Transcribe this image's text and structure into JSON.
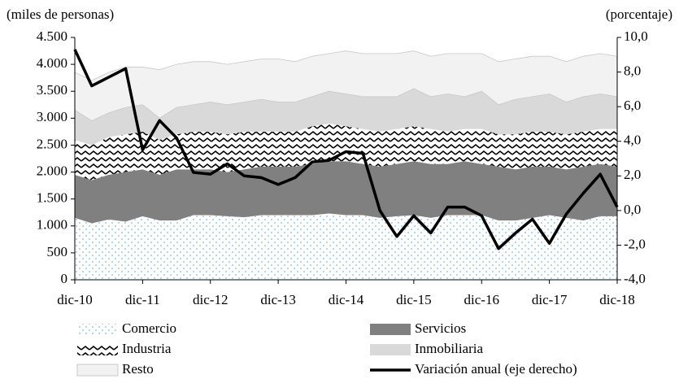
{
  "chart_data": {
    "type": "stacked-area-line",
    "y_label": "(miles de personas)",
    "y2_label": "(porcentaje)",
    "categories": [
      "dic-10",
      null,
      null,
      null,
      "dic-11",
      null,
      null,
      null,
      "dic-12",
      null,
      null,
      null,
      "dic-13",
      null,
      null,
      null,
      "dic-14",
      null,
      null,
      null,
      "dic-15",
      null,
      null,
      null,
      "dic-16",
      null,
      null,
      null,
      "dic-17",
      null,
      null,
      null,
      "dic-18"
    ],
    "ylim": [
      0,
      4500
    ],
    "yticks": [
      0,
      500,
      {
        "value": 1000,
        "label": "1.000"
      },
      {
        "value": 1500,
        "label": "1.500"
      },
      {
        "value": 2000,
        "label": "2.000"
      },
      {
        "value": 2500,
        "label": "2.500"
      },
      {
        "value": 3000,
        "label": "3.000"
      },
      {
        "value": 3500,
        "label": "3.500"
      },
      {
        "value": 4000,
        "label": "4.000"
      },
      {
        "value": 4500,
        "label": "4.500"
      }
    ],
    "y2lim": [
      -4,
      10
    ],
    "y2ticks": [
      {
        "value": -4,
        "label": "-4,0"
      },
      {
        "value": -2,
        "label": "-2,0"
      },
      {
        "value": 0,
        "label": "0,0"
      },
      {
        "value": 2,
        "label": "2,0"
      },
      {
        "value": 4,
        "label": "4,0"
      },
      {
        "value": 6,
        "label": "6,0"
      },
      {
        "value": 8,
        "label": "8,0"
      },
      {
        "value": 10,
        "label": "10,0"
      }
    ],
    "series": [
      {
        "name": "Comercio",
        "kind": "area",
        "pattern": "dots",
        "color": "#9dc3e6",
        "values": [
          1150,
          1050,
          1120,
          1080,
          1180,
          1100,
          1100,
          1200,
          1200,
          1180,
          1160,
          1200,
          1200,
          1200,
          1200,
          1230,
          1200,
          1200,
          1150,
          1180,
          1200,
          1150,
          1200,
          1200,
          1200,
          1100,
          1100,
          1150,
          1200,
          1150,
          1100,
          1180,
          1180
        ]
      },
      {
        "name": "Servicios",
        "kind": "area",
        "color": "#808080",
        "values": [
          800,
          800,
          830,
          920,
          870,
          850,
          950,
          850,
          850,
          820,
          890,
          900,
          900,
          900,
          950,
          970,
          1000,
          950,
          950,
          970,
          1000,
          1000,
          950,
          1000,
          950,
          1000,
          950,
          950,
          900,
          900,
          1000,
          970,
          920
        ]
      },
      {
        "name": "Industria",
        "kind": "area",
        "pattern": "zigzag",
        "color": "#000000",
        "values": [
          650,
          650,
          700,
          700,
          700,
          650,
          650,
          700,
          700,
          700,
          700,
          650,
          650,
          650,
          700,
          700,
          650,
          650,
          650,
          650,
          650,
          650,
          600,
          600,
          650,
          600,
          650,
          650,
          650,
          650,
          650,
          650,
          700
        ]
      },
      {
        "name": "Inmobiliaria",
        "kind": "area",
        "color": "#d9d9d9",
        "values": [
          550,
          450,
          450,
          500,
          500,
          400,
          500,
          500,
          550,
          550,
          550,
          600,
          550,
          550,
          550,
          600,
          600,
          600,
          650,
          600,
          700,
          600,
          700,
          600,
          700,
          550,
          650,
          650,
          700,
          600,
          650,
          650,
          600
        ]
      },
      {
        "name": "Resto",
        "kind": "area",
        "color": "#f2f2f2",
        "values": [
          700,
          750,
          750,
          750,
          700,
          900,
          800,
          800,
          750,
          750,
          750,
          750,
          800,
          750,
          750,
          700,
          800,
          800,
          800,
          800,
          700,
          750,
          750,
          800,
          700,
          800,
          750,
          750,
          700,
          750,
          750,
          750,
          750
        ]
      },
      {
        "name": "Variación anual (eje derecho)",
        "kind": "line",
        "axis": "y2",
        "color": "#000000",
        "values": [
          9.3,
          7.2,
          7.7,
          8.2,
          3.5,
          5.2,
          4.2,
          2.2,
          2.1,
          2.7,
          2.0,
          1.9,
          1.5,
          1.9,
          2.8,
          2.9,
          3.4,
          3.3,
          0.0,
          -1.5,
          -0.3,
          -1.3,
          0.2,
          0.2,
          -0.3,
          -2.2,
          -1.3,
          -0.5,
          -1.9,
          -0.2,
          1.0,
          2.1,
          0.2
        ]
      }
    ]
  }
}
